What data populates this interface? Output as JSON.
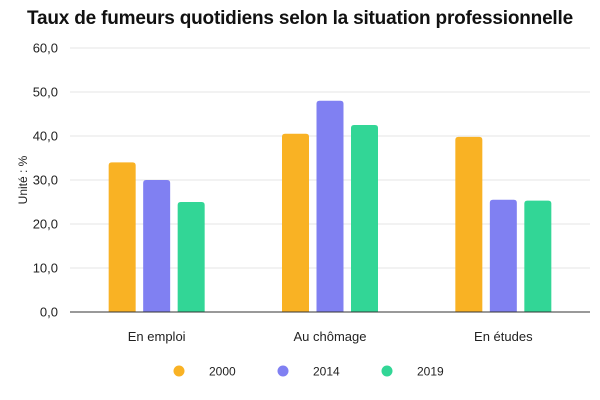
{
  "chart_data": {
    "type": "bar",
    "title": "Taux de fumeurs quotidiens selon la situation professionnelle",
    "xlabel": "",
    "ylabel": "Unité : %",
    "ylim": [
      0,
      60
    ],
    "yticks": [
      "0,0",
      "10,0",
      "20,0",
      "30,0",
      "40,0",
      "50,0",
      "60,0"
    ],
    "grid": true,
    "legend_position": "bottom",
    "categories": [
      "En emploi",
      "Au chômage",
      "En études"
    ],
    "series": [
      {
        "name": "2000",
        "color": "#F9B224",
        "values": [
          34.0,
          40.5,
          39.8
        ]
      },
      {
        "name": "2014",
        "color": "#8080F2",
        "values": [
          30.0,
          48.0,
          25.5
        ]
      },
      {
        "name": "2019",
        "color": "#32D696",
        "values": [
          25.0,
          42.5,
          25.3
        ]
      }
    ]
  }
}
